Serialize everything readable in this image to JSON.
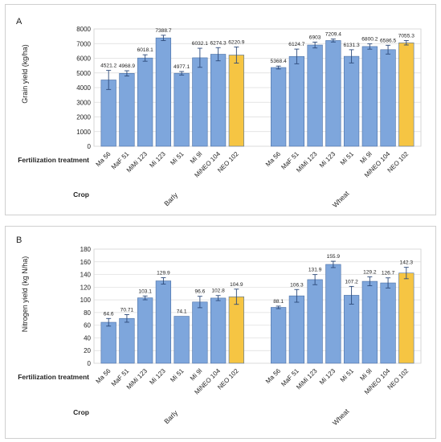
{
  "panels_meta": {
    "frame_color": "#cfcfcf",
    "grid_color": "#dcdcdc",
    "bar_color_default": "#7ea6dc",
    "bar_color_highlight": "#f6c543",
    "bar_stroke": "#4a6fa5",
    "row_label_treatment": "Fertilization treatment",
    "row_label_crop": "Crop"
  },
  "chart_data": [
    {
      "type": "bar",
      "panel_label": "A",
      "ylabel": "Grain yield (kg/ha)",
      "ylim": [
        0,
        8000
      ],
      "yticks": [
        0,
        1000,
        2000,
        3000,
        4000,
        5000,
        6000,
        7000,
        8000
      ],
      "grid": true,
      "groups": [
        {
          "crop": "Barly",
          "categories": [
            "Ma 56",
            "MaF 51",
            "MiMi 123",
            "Mi 123",
            "Mi 51",
            "Mi 9l",
            "MiNEO 104",
            "NEO 102"
          ],
          "values": [
            4521.2,
            4968.9,
            6018.1,
            7388.7,
            4977.1,
            6032.1,
            6274.3,
            6220.9
          ],
          "labels": [
            "4521.2",
            "4968.9",
            "6018.1",
            "7388.7",
            "4977.1",
            "6032.1",
            "6274.3",
            "6220.9"
          ],
          "errors": [
            650,
            180,
            220,
            180,
            120,
            650,
            450,
            550
          ],
          "highlight": [
            false,
            false,
            false,
            false,
            false,
            false,
            false,
            true
          ]
        },
        {
          "crop": "Wheat",
          "categories": [
            "Ma 56",
            "MaF 51",
            "MiMi 123",
            "Mi 123",
            "Mi 51",
            "Mi 9l",
            "MiNEO 104",
            "NEO 102"
          ],
          "values": [
            5368.4,
            6124.7,
            6903,
            7209.4,
            6131.3,
            6800.2,
            6586.5,
            7055.3
          ],
          "labels": [
            "5368.4",
            "6124.7",
            "6903",
            "7209.4",
            "6131.3",
            "6800.2",
            "6586.5",
            "7055.3"
          ],
          "errors": [
            100,
            500,
            200,
            100,
            450,
            180,
            300,
            150
          ],
          "highlight": [
            false,
            false,
            false,
            false,
            false,
            false,
            false,
            true
          ]
        }
      ]
    },
    {
      "type": "bar",
      "panel_label": "B",
      "ylabel": "Nitrogen yield (kg N/ha)",
      "ylim": [
        0,
        180
      ],
      "yticks": [
        0,
        20,
        40,
        60,
        80,
        100,
        120,
        140,
        160,
        180
      ],
      "grid": true,
      "groups": [
        {
          "crop": "Barly",
          "categories": [
            "Ma 56",
            "MaF 51",
            "MiMi 123",
            "Mi 123",
            "Mi 51",
            "Mi 9l",
            "MiNEO 104",
            "NEO 102"
          ],
          "values": [
            64.6,
            70.71,
            103.1,
            129.9,
            74.1,
            96.6,
            102.8,
            104.9
          ],
          "labels": [
            "64.6",
            "70.71",
            "103.1",
            "129.9",
            "74.1",
            "96.6",
            "102.8",
            "104.9"
          ],
          "errors": [
            6,
            6,
            3,
            5,
            0,
            9,
            4,
            12
          ],
          "highlight": [
            false,
            false,
            false,
            false,
            false,
            false,
            false,
            true
          ]
        },
        {
          "crop": "Wheat",
          "categories": [
            "Ma 56",
            "MaF 51",
            "MiMi 123",
            "Mi 123",
            "Mi 51",
            "Mi 9l",
            "MiNEO 104",
            "NEO 102"
          ],
          "values": [
            88.1,
            106.3,
            131.9,
            155.9,
            107.2,
            129.2,
            126.7,
            142.3
          ],
          "labels": [
            "88.1",
            "106.3",
            "131.9",
            "155.9",
            "107.2",
            "129.2",
            "126.7",
            "142.3"
          ],
          "errors": [
            2,
            10,
            8,
            5,
            14,
            7,
            8,
            9
          ],
          "highlight": [
            false,
            false,
            false,
            false,
            false,
            false,
            false,
            true
          ]
        }
      ]
    }
  ]
}
